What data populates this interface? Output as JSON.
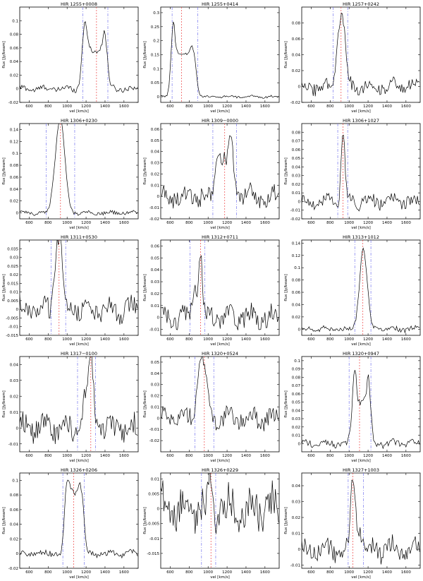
{
  "xlabel": "vel [km/s]",
  "ylabel": "flux [Jy/beam]",
  "colors": {
    "spectrum": "#000000",
    "width_lines": "#7777ee",
    "center_line": "#ee4444",
    "frame": "#000000"
  },
  "chart_data": [
    {
      "type": "line",
      "title": "HIR 1255+0008",
      "xlim": [
        500,
        1750
      ],
      "ylim": [
        -0.02,
        0.12
      ],
      "xticks": [
        600,
        800,
        1000,
        1200,
        1400,
        1600
      ],
      "yticks": [
        -0.02,
        0,
        0.02,
        0.04,
        0.06,
        0.08,
        0.1
      ],
      "ytick_labels": [
        "-0.02",
        "0",
        "0.02",
        "0.04",
        "0.06",
        "0.08",
        "0.1"
      ],
      "vlines_width": [
        1165,
        1430
      ],
      "vline_center": 1310,
      "peaks": [
        [
          1190,
          0.1,
          30
        ],
        [
          1390,
          0.085,
          30
        ]
      ],
      "plateau": [
        1165,
        1430,
        0.055
      ],
      "noise": 0.004
    },
    {
      "type": "line",
      "title": "HIR 1255+0414",
      "xlim": [
        500,
        1750
      ],
      "ylim": [
        -0.02,
        0.32
      ],
      "xticks": [
        600,
        800,
        1000,
        1200,
        1400,
        1600
      ],
      "yticks": [
        0,
        0.05,
        0.1,
        0.15,
        0.2,
        0.25,
        0.3
      ],
      "ytick_labels": [
        "0",
        "0.05",
        "0.1",
        "0.15",
        "0.2",
        "0.25",
        "0.3"
      ],
      "vlines_width": [
        620,
        890
      ],
      "vline_center": 720,
      "peaks": [
        [
          635,
          0.27,
          25
        ],
        [
          830,
          0.16,
          20
        ]
      ],
      "plateau": [
        620,
        880,
        0.15
      ],
      "noise": 0.004
    },
    {
      "type": "line",
      "title": "HIR 1257+0242",
      "xlim": [
        500,
        1750
      ],
      "ylim": [
        -0.02,
        0.1
      ],
      "xticks": [
        600,
        800,
        1000,
        1200,
        1400,
        1600
      ],
      "yticks": [
        -0.02,
        0,
        0.02,
        0.04,
        0.06,
        0.08
      ],
      "ytick_labels": [
        "-0.02",
        "0",
        "0.02",
        "0.04",
        "0.06",
        "0.08"
      ],
      "vlines_width": [
        830,
        985
      ],
      "vline_center": 915,
      "peaks": [
        [
          930,
          0.088,
          30
        ],
        [
          880,
          0.05,
          20
        ]
      ],
      "plateau": null,
      "noise": 0.008
    },
    {
      "type": "line",
      "title": "HIR 1306+0230",
      "xlim": [
        500,
        1750
      ],
      "ylim": [
        -0.01,
        0.15
      ],
      "xticks": [
        600,
        800,
        1000,
        1200,
        1400,
        1600
      ],
      "yticks": [
        0,
        0.02,
        0.04,
        0.06,
        0.08,
        0.1,
        0.12,
        0.14
      ],
      "ytick_labels": [
        "0",
        "0.02",
        "0.04",
        "0.06",
        "0.08",
        "0.1",
        "0.12",
        "0.14"
      ],
      "vlines_width": [
        780,
        1080
      ],
      "vline_center": 930,
      "peaks": [
        [
          935,
          0.14,
          45
        ],
        [
          880,
          0.04,
          40
        ]
      ],
      "plateau": null,
      "noise": 0.003
    },
    {
      "type": "line",
      "title": "HIR 1309−0000",
      "xlim": [
        500,
        1750
      ],
      "ylim": [
        -0.02,
        0.065
      ],
      "xticks": [
        600,
        800,
        1000,
        1200,
        1400,
        1600
      ],
      "yticks": [
        -0.02,
        -0.01,
        0,
        0.01,
        0.02,
        0.03,
        0.04,
        0.05,
        0.06
      ],
      "ytick_labels": [
        "-0.02",
        "-0.01",
        "0",
        "0.01",
        "0.02",
        "0.03",
        "0.04",
        "0.05",
        "0.06"
      ],
      "vlines_width": [
        1050,
        1300
      ],
      "vline_center": 1175,
      "peaks": [
        [
          1110,
          0.04,
          25
        ],
        [
          1240,
          0.052,
          25
        ]
      ],
      "plateau": [
        1070,
        1280,
        0.03
      ],
      "noise": 0.008
    },
    {
      "type": "line",
      "title": "HIR 1306+1027",
      "xlim": [
        500,
        1750
      ],
      "ylim": [
        -0.02,
        0.09
      ],
      "xticks": [
        600,
        800,
        1000,
        1200,
        1400,
        1600
      ],
      "yticks": [
        -0.02,
        -0.01,
        0,
        0.01,
        0.02,
        0.03,
        0.04,
        0.05,
        0.06,
        0.07,
        0.08
      ],
      "ytick_labels": [
        "-0.02",
        "-0.01",
        "0",
        "0.01",
        "0.02",
        "0.03",
        "0.04",
        "0.05",
        "0.06",
        "0.07",
        "0.08"
      ],
      "vlines_width": [
        880,
        985
      ],
      "vline_center": 935,
      "peaks": [
        [
          935,
          0.08,
          20
        ]
      ],
      "plateau": null,
      "noise": 0.007
    },
    {
      "type": "line",
      "title": "HIR 1311+0530",
      "xlim": [
        500,
        1750
      ],
      "ylim": [
        -0.015,
        0.04
      ],
      "xticks": [
        600,
        800,
        1000,
        1200,
        1400,
        1600
      ],
      "yticks": [
        -0.015,
        -0.01,
        -0.005,
        0,
        0.005,
        0.01,
        0.015,
        0.02,
        0.025,
        0.03,
        0.035
      ],
      "ytick_labels": [
        "-0.015",
        "-0.01",
        "-0.005",
        "0",
        "0.005",
        "0.01",
        "0.015",
        "0.02",
        "0.025",
        "0.03",
        "0.035"
      ],
      "vlines_width": [
        830,
        985
      ],
      "vline_center": 915,
      "peaks": [
        [
          895,
          0.035,
          30
        ],
        [
          940,
          0.02,
          30
        ]
      ],
      "plateau": null,
      "noise": 0.006
    },
    {
      "type": "line",
      "title": "HIR 1312+0711",
      "xlim": [
        500,
        1750
      ],
      "ylim": [
        -0.015,
        0.065
      ],
      "xticks": [
        600,
        800,
        1000,
        1200,
        1400,
        1600
      ],
      "yticks": [
        -0.01,
        0,
        0.01,
        0.02,
        0.03,
        0.04,
        0.05,
        0.06
      ],
      "ytick_labels": [
        "-0.01",
        "0",
        "0.01",
        "0.02",
        "0.03",
        "0.04",
        "0.05",
        "0.06"
      ],
      "vlines_width": [
        810,
        965
      ],
      "vline_center": 920,
      "peaks": [
        [
          860,
          0.03,
          25
        ],
        [
          920,
          0.056,
          18
        ]
      ],
      "plateau": null,
      "noise": 0.008
    },
    {
      "type": "line",
      "title": "HIR 1313+1012",
      "xlim": [
        500,
        1750
      ],
      "ylim": [
        -0.01,
        0.145
      ],
      "xticks": [
        600,
        800,
        1000,
        1200,
        1400,
        1600
      ],
      "yticks": [
        0,
        0.02,
        0.04,
        0.06,
        0.08,
        0.1,
        0.12,
        0.14
      ],
      "ytick_labels": [
        "0",
        "0.02",
        "0.04",
        "0.06",
        "0.08",
        "0.1",
        "0.12",
        "0.14"
      ],
      "vlines_width": [
        1060,
        1230
      ],
      "vline_center": 1145,
      "peaks": [
        [
          1150,
          0.13,
          40
        ]
      ],
      "plateau": null,
      "noise": 0.004
    },
    {
      "type": "line",
      "title": "HIR 1317−0100",
      "xlim": [
        500,
        1750
      ],
      "ylim": [
        -0.015,
        0.045
      ],
      "xticks": [
        600,
        800,
        1000,
        1200,
        1400,
        1600
      ],
      "yticks": [
        -0.01,
        0,
        0.01,
        0.02,
        0.03,
        0.04
      ],
      "ytick_labels": [
        "-0.01",
        "0",
        "0.01",
        "0.02",
        "0.03",
        "0.04"
      ],
      "vlines_width": [
        1110,
        1300
      ],
      "vline_center": 1250,
      "peaks": [
        [
          1250,
          0.043,
          28
        ],
        [
          1180,
          0.015,
          30
        ]
      ],
      "plateau": null,
      "noise": 0.007
    },
    {
      "type": "line",
      "title": "HIR 1320+0524",
      "xlim": [
        500,
        1750
      ],
      "ylim": [
        -0.03,
        0.055
      ],
      "xticks": [
        600,
        800,
        1000,
        1200,
        1400,
        1600
      ],
      "yticks": [
        -0.02,
        -0.01,
        0,
        0.01,
        0.02,
        0.03,
        0.04,
        0.05
      ],
      "ytick_labels": [
        "-0.02",
        "-0.01",
        "0",
        "0.01",
        "0.02",
        "0.03",
        "0.04",
        "0.05"
      ],
      "vlines_width": [
        860,
        1060
      ],
      "vline_center": 960,
      "peaks": [
        [
          950,
          0.046,
          40
        ],
        [
          900,
          0.02,
          30
        ]
      ],
      "plateau": null,
      "noise": 0.008
    },
    {
      "type": "line",
      "title": "HIR 1320+0947",
      "xlim": [
        500,
        1750
      ],
      "ylim": [
        -0.01,
        0.105
      ],
      "xticks": [
        600,
        800,
        1000,
        1200,
        1400,
        1600
      ],
      "yticks": [
        0,
        0.01,
        0.02,
        0.03,
        0.04,
        0.05,
        0.06,
        0.07,
        0.08,
        0.09,
        0.1
      ],
      "ytick_labels": [
        "0",
        "0.01",
        "0.02",
        "0.03",
        "0.04",
        "0.05",
        "0.06",
        "0.07",
        "0.08",
        "0.09",
        "0.1"
      ],
      "vlines_width": [
        1000,
        1230
      ],
      "vline_center": 1110,
      "peaks": [
        [
          1060,
          0.092,
          25
        ],
        [
          1200,
          0.08,
          25
        ]
      ],
      "plateau": [
        1040,
        1225,
        0.05
      ],
      "noise": 0.004
    },
    {
      "type": "line",
      "title": "HIR 1326+0206",
      "xlim": [
        500,
        1750
      ],
      "ylim": [
        -0.02,
        0.11
      ],
      "xticks": [
        600,
        800,
        1000,
        1200,
        1400,
        1600
      ],
      "yticks": [
        -0.02,
        0,
        0.02,
        0.04,
        0.06,
        0.08,
        0.1
      ],
      "ytick_labels": [
        "-0.02",
        "0",
        "0.02",
        "0.04",
        "0.06",
        "0.08",
        "0.1"
      ],
      "vlines_width": [
        955,
        1180
      ],
      "vline_center": 1070,
      "peaks": [
        [
          1000,
          0.1,
          25
        ],
        [
          1150,
          0.09,
          25
        ]
      ],
      "plateau": [
        980,
        1170,
        0.085
      ],
      "noise": 0.004
    },
    {
      "type": "line",
      "title": "HIR 1326+0229",
      "xlim": [
        500,
        1750
      ],
      "ylim": [
        -0.02,
        0.012
      ],
      "xticks": [
        600,
        800,
        1000,
        1200,
        1400,
        1600
      ],
      "yticks": [
        -0.015,
        -0.01,
        -0.005,
        0,
        0.005,
        0.01
      ],
      "ytick_labels": [
        "-0.015",
        "-0.01",
        "-0.005",
        "0",
        "0.005",
        "0.01"
      ],
      "vlines_width": [
        930,
        1080
      ],
      "vline_center": 1030,
      "peaks": [
        [
          1030,
          0.01,
          20
        ]
      ],
      "plateau": null,
      "noise": 0.006
    },
    {
      "type": "line",
      "title": "HIR 1327+1003",
      "xlim": [
        500,
        1750
      ],
      "ylim": [
        -0.012,
        0.048
      ],
      "xticks": [
        600,
        800,
        1000,
        1200,
        1400,
        1600
      ],
      "yticks": [
        -0.01,
        0,
        0.01,
        0.02,
        0.03,
        0.04
      ],
      "ytick_labels": [
        "-0.01",
        "0",
        "0.01",
        "0.02",
        "0.03",
        "0.04"
      ],
      "vlines_width": [
        990,
        1150
      ],
      "vline_center": 1040,
      "peaks": [
        [
          1040,
          0.044,
          22
        ],
        [
          1100,
          0.015,
          25
        ]
      ],
      "plateau": null,
      "noise": 0.006
    }
  ]
}
